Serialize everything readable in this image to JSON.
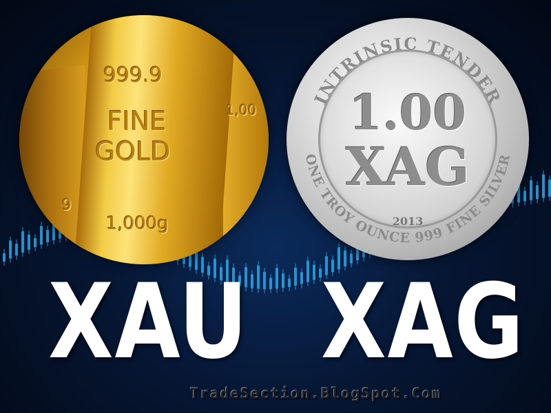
{
  "gold_bar": {
    "purity": "999.9",
    "line1": "FINE",
    "line2": "GOLD",
    "weight": "1,000g",
    "side_partial_top": "1,00",
    "side_partial_left": "9"
  },
  "silver_coin": {
    "top_arc": "INTRINSIC TENDER",
    "bottom_arc": "ONE TROY OUNCE 999 FINE SILVER",
    "amount": "1.00",
    "symbol": "XAG",
    "year": "2013"
  },
  "tickers": {
    "gold": "XAU",
    "silver": "XAG"
  },
  "watermark": "TradeSection.BlogSpot.Com",
  "colors": {
    "background": "#061633",
    "candles": "#2aa8e8",
    "gold": "#e1aa23",
    "silver": "#d8d8d8",
    "ticker_text": "#ffffff"
  }
}
